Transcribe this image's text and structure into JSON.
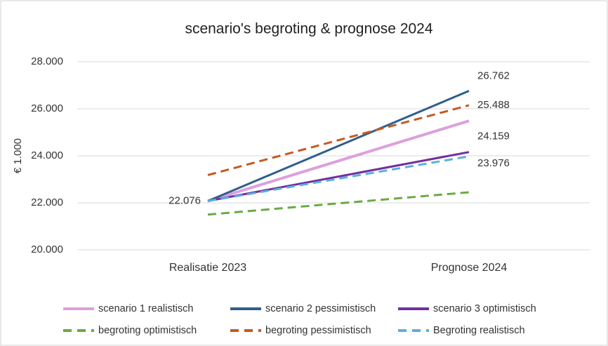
{
  "chart_data": {
    "type": "line",
    "title": "scenario's begroting & prognose 2024",
    "y_label": "€ 1.000",
    "categories": [
      "Realisatie 2023",
      "Prognose 2024"
    ],
    "ylim": [
      20000,
      28000
    ],
    "yticks": [
      {
        "value": 20000,
        "label": "20.000"
      },
      {
        "value": 22000,
        "label": "22.000"
      },
      {
        "value": 24000,
        "label": "24.000"
      },
      {
        "value": 26000,
        "label": "26.000"
      },
      {
        "value": 28000,
        "label": "28.000"
      }
    ],
    "grid": true,
    "legend": "bottom",
    "series": [
      {
        "name": "scenario 1 realistisch",
        "color": "#dda0dd",
        "dashed": false,
        "values": [
          22076,
          25488
        ],
        "value_labels": [
          null,
          "25.488"
        ]
      },
      {
        "name": "scenario 2 pessimistisch",
        "color": "#2f5f8c",
        "dashed": false,
        "values": [
          22076,
          26762
        ],
        "value_labels": [
          "22.076",
          "26.762"
        ]
      },
      {
        "name": "scenario 3 optimistisch",
        "color": "#7030a0",
        "dashed": false,
        "values": [
          22076,
          24159
        ],
        "value_labels": [
          null,
          "24.159"
        ]
      },
      {
        "name": "begroting optimistisch",
        "color": "#6aaa45",
        "dashed": true,
        "values": [
          21500,
          22450
        ],
        "value_labels": [
          null,
          null
        ]
      },
      {
        "name": "begroting pessimistisch",
        "color": "#c55a22",
        "dashed": true,
        "values": [
          23180,
          26150
        ],
        "value_labels": [
          null,
          null
        ]
      },
      {
        "name": "Begroting realistisch",
        "color": "#5ab0dc",
        "dashed": true,
        "values": [
          22076,
          23976
        ],
        "value_labels": [
          null,
          "23.976"
        ]
      }
    ]
  }
}
